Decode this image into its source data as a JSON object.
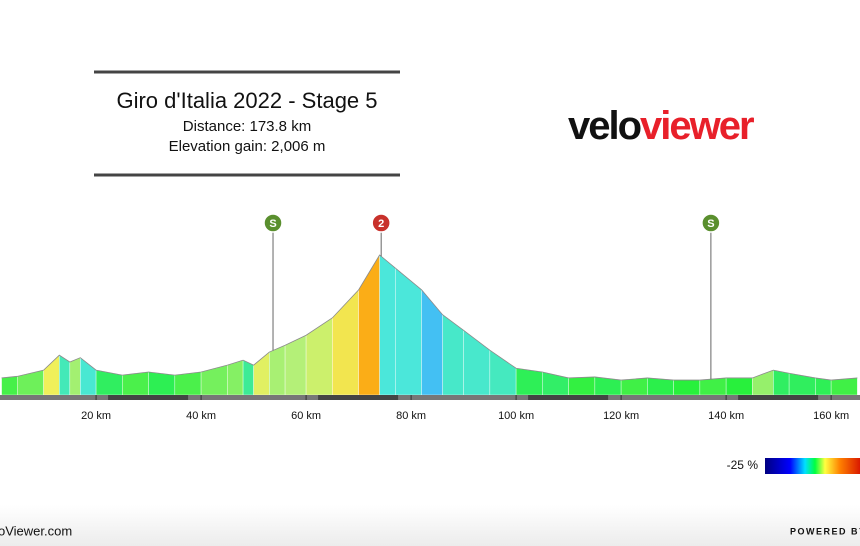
{
  "header": {
    "title": "Giro d'Italia 2022 - Stage 5",
    "distance": "Distance: 173.8 km",
    "elevation": "Elevation gain: 2,006 m"
  },
  "logo": {
    "part1": "velo",
    "part2": "viewer"
  },
  "chart_data": {
    "type": "area",
    "x": [
      2,
      5,
      10,
      13,
      15,
      17,
      20,
      25,
      30,
      35,
      40,
      45,
      48,
      50,
      53,
      56,
      60,
      65,
      70,
      74,
      77,
      82,
      86,
      90,
      95,
      100,
      105,
      110,
      115,
      120,
      125,
      130,
      135,
      140,
      145,
      149,
      152,
      157,
      160,
      165
    ],
    "values": [
      137,
      150,
      200,
      320,
      265,
      300,
      200,
      160,
      185,
      160,
      185,
      240,
      280,
      240,
      345,
      400,
      480,
      620,
      845,
      1125,
      1020,
      845,
      645,
      520,
      360,
      215,
      185,
      137,
      145,
      120,
      137,
      120,
      120,
      137,
      137,
      200,
      175,
      137,
      120,
      137
    ],
    "xlim": [
      1.7,
      165.5
    ],
    "ylim": [
      0,
      1125
    ],
    "xticks": [
      {
        "value": 20,
        "label": "20 km"
      },
      {
        "value": 40,
        "label": "40 km"
      },
      {
        "value": 60,
        "label": "60 km"
      },
      {
        "value": 80,
        "label": "80 km"
      },
      {
        "value": 100,
        "label": "100 km"
      },
      {
        "value": 120,
        "label": "120 km"
      },
      {
        "value": 140,
        "label": "140 km"
      },
      {
        "value": 160,
        "label": "160 km"
      }
    ],
    "markers": [
      {
        "x": 53.7,
        "label": "S",
        "color": "#5a8f2e"
      },
      {
        "x": 74.3,
        "label": "2",
        "color": "#c8312b"
      },
      {
        "x": 137.1,
        "label": "S",
        "color": "#5a8f2e"
      }
    ]
  },
  "legend": {
    "label": "-25 %"
  },
  "footer": {
    "left": "oViewer.com",
    "right": "POWERED BY"
  }
}
